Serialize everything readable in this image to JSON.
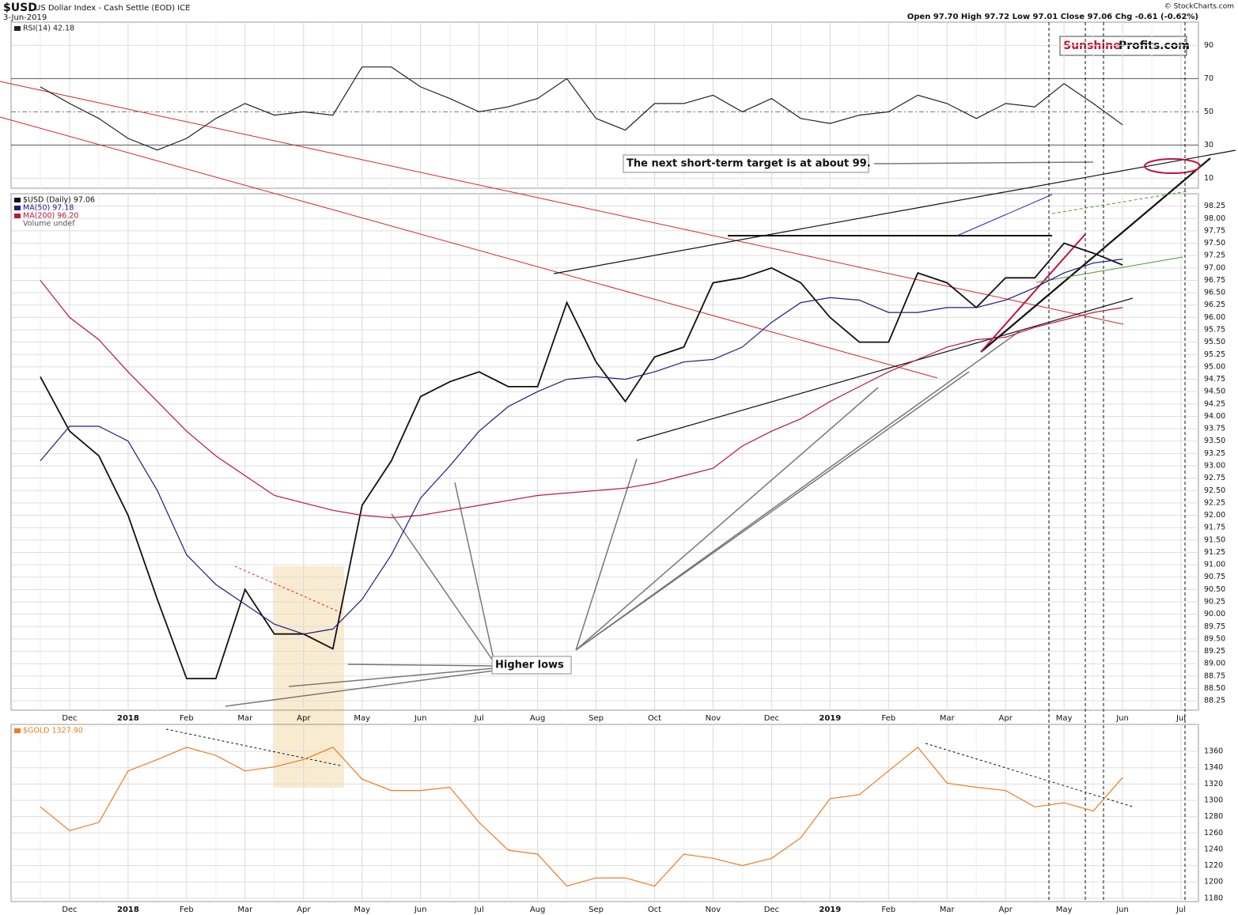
{
  "header": {
    "symbol": "$USD",
    "name": "US Dollar Index - Cash Settle (EOD) ICE",
    "date": "3-Jun-2019",
    "ohlc": "Open 97.70  High 97.72  Low 97.01  Close 97.06  Chg -0.61 (-0.62%)",
    "credit": "© StockCharts.com",
    "logo_a": "Sunshine",
    "logo_b": "Profits.com"
  },
  "chart_data": [
    {
      "type": "line",
      "series": [
        {
          "name": "RSI(14) 42.18",
          "color": "#222222",
          "values": [
            65,
            55,
            46,
            34,
            27,
            34,
            46,
            55,
            48,
            50,
            48,
            77,
            77,
            65,
            58,
            50,
            53,
            58,
            70,
            46,
            39,
            55,
            55,
            60,
            50,
            58,
            46,
            43,
            48,
            50,
            60,
            55,
            46,
            55,
            53,
            67,
            55,
            42.18,
            null,
            null
          ]
        }
      ],
      "ylim": [
        4,
        104
      ],
      "yticks": [
        10,
        30,
        50,
        70,
        90
      ],
      "levels": [
        30,
        70
      ],
      "midline": 50,
      "grid": true
    },
    {
      "type": "line",
      "categories": [
        null,
        "Dec",
        null,
        "2018",
        null,
        "Feb",
        null,
        "Mar",
        null,
        "Apr",
        null,
        "May",
        null,
        "Jun",
        null,
        "Jul",
        null,
        "Aug",
        null,
        "Sep",
        null,
        "Oct",
        null,
        "Nov",
        null,
        "Dec",
        null,
        "2019",
        null,
        "Feb",
        null,
        "Mar",
        null,
        "Apr",
        null,
        "May",
        null,
        "Jun",
        null,
        "Jul"
      ],
      "series": [
        {
          "name": "$USD (Daily) 97.06",
          "color": "#111111",
          "values": [
            94.8,
            93.7,
            93.2,
            92.0,
            90.3,
            88.7,
            88.7,
            90.5,
            89.6,
            89.6,
            89.3,
            92.2,
            93.1,
            94.4,
            94.7,
            94.9,
            94.6,
            94.6,
            96.3,
            95.1,
            94.3,
            95.2,
            95.4,
            96.7,
            96.8,
            97.0,
            96.7,
            96.0,
            95.5,
            95.5,
            96.9,
            96.7,
            96.2,
            96.8,
            96.8,
            97.5,
            97.3,
            97.06,
            null,
            null
          ]
        },
        {
          "name": "MA(50) 97.18",
          "color": "#1c1c80",
          "values": [
            93.1,
            93.8,
            93.8,
            93.5,
            92.5,
            91.2,
            90.6,
            90.2,
            89.8,
            89.6,
            89.7,
            90.3,
            91.2,
            92.35,
            93.0,
            93.7,
            94.2,
            94.5,
            94.75,
            94.8,
            94.75,
            94.9,
            95.1,
            95.15,
            95.4,
            95.9,
            96.3,
            96.4,
            96.35,
            96.1,
            96.1,
            96.2,
            96.2,
            96.35,
            96.6,
            96.9,
            97.1,
            97.18,
            null,
            null
          ]
        },
        {
          "name": "MA(200) 96.20",
          "color": "#c0143c",
          "values": [
            96.75,
            96.0,
            95.55,
            94.9,
            94.3,
            93.7,
            93.2,
            92.8,
            92.4,
            92.25,
            92.1,
            92.0,
            91.95,
            92.0,
            92.1,
            92.2,
            92.3,
            92.4,
            92.45,
            92.5,
            92.55,
            92.65,
            92.8,
            92.95,
            93.4,
            93.7,
            93.95,
            94.3,
            94.6,
            94.9,
            95.15,
            95.4,
            95.55,
            95.6,
            95.8,
            95.95,
            96.1,
            96.2,
            null,
            null
          ]
        }
      ],
      "legend_extra": "Volume undef",
      "annotations": [
        "The next short-term target is at about 99.",
        "Higher lows"
      ],
      "ylim": [
        88.06,
        98.5
      ],
      "yticks": [
        88.25,
        {
          "value": 88.5,
          "label": "88.50"
        },
        88.75,
        {
          "value": 89,
          "label": "89.00"
        },
        89.25,
        {
          "value": 89.5,
          "label": "89.50"
        },
        89.75,
        {
          "value": 90,
          "label": "90.00"
        },
        90.25,
        {
          "value": 90.5,
          "label": "90.50"
        },
        90.75,
        {
          "value": 91,
          "label": "91.00"
        },
        91.25,
        {
          "value": 91.5,
          "label": "91.50"
        },
        91.75,
        {
          "value": 92,
          "label": "92.00"
        },
        92.25,
        {
          "value": 92.5,
          "label": "92.50"
        },
        92.75,
        {
          "value": 93,
          "label": "93.00"
        },
        93.25,
        {
          "value": 93.5,
          "label": "93.50"
        },
        93.75,
        {
          "value": 94,
          "label": "94.00"
        },
        94.25,
        {
          "value": 94.5,
          "label": "94.50"
        },
        94.75,
        {
          "value": 95,
          "label": "95.00"
        },
        95.25,
        {
          "value": 95.5,
          "label": "95.50"
        },
        95.75,
        {
          "value": 96,
          "label": "96.00"
        },
        96.25,
        {
          "value": 96.5,
          "label": "96.50"
        },
        96.75,
        {
          "value": 97,
          "label": "97.00"
        },
        97.25,
        {
          "value": 97.5,
          "label": "97.50"
        },
        97.75,
        {
          "value": 98,
          "label": "98.00"
        },
        98.25
      ],
      "grid": true
    },
    {
      "type": "line",
      "categories": [
        null,
        "Dec",
        null,
        "2018",
        null,
        "Feb",
        null,
        "Mar",
        null,
        "Apr",
        null,
        "May",
        null,
        "Jun",
        null,
        "Jul",
        null,
        "Aug",
        null,
        "Sep",
        null,
        "Oct",
        null,
        "Nov",
        null,
        "Dec",
        null,
        "2019",
        null,
        "Feb",
        null,
        "Mar",
        null,
        "Apr",
        null,
        "May",
        null,
        "Jun",
        null,
        "Jul"
      ],
      "series": [
        {
          "name": "$GOLD 1327.90",
          "color": "#f07c1a",
          "values": [
            1292,
            1263,
            1273,
            1336,
            1350,
            1365,
            1355,
            1336,
            1341,
            1350,
            1365,
            1326,
            1312,
            1312,
            1316,
            1273,
            1239,
            1234,
            1195,
            1205,
            1205,
            1195,
            1234,
            1229,
            1220,
            1229,
            1254,
            1302,
            1307,
            1336,
            1365,
            1321,
            1316,
            1312,
            1292,
            1297,
            1287,
            1327.9,
            null,
            null
          ]
        }
      ],
      "ylim": [
        1176,
        1393
      ],
      "yticks": [
        1180,
        1200,
        1220,
        1240,
        1260,
        1280,
        1300,
        1320,
        1340,
        1360
      ],
      "grid": true
    }
  ]
}
